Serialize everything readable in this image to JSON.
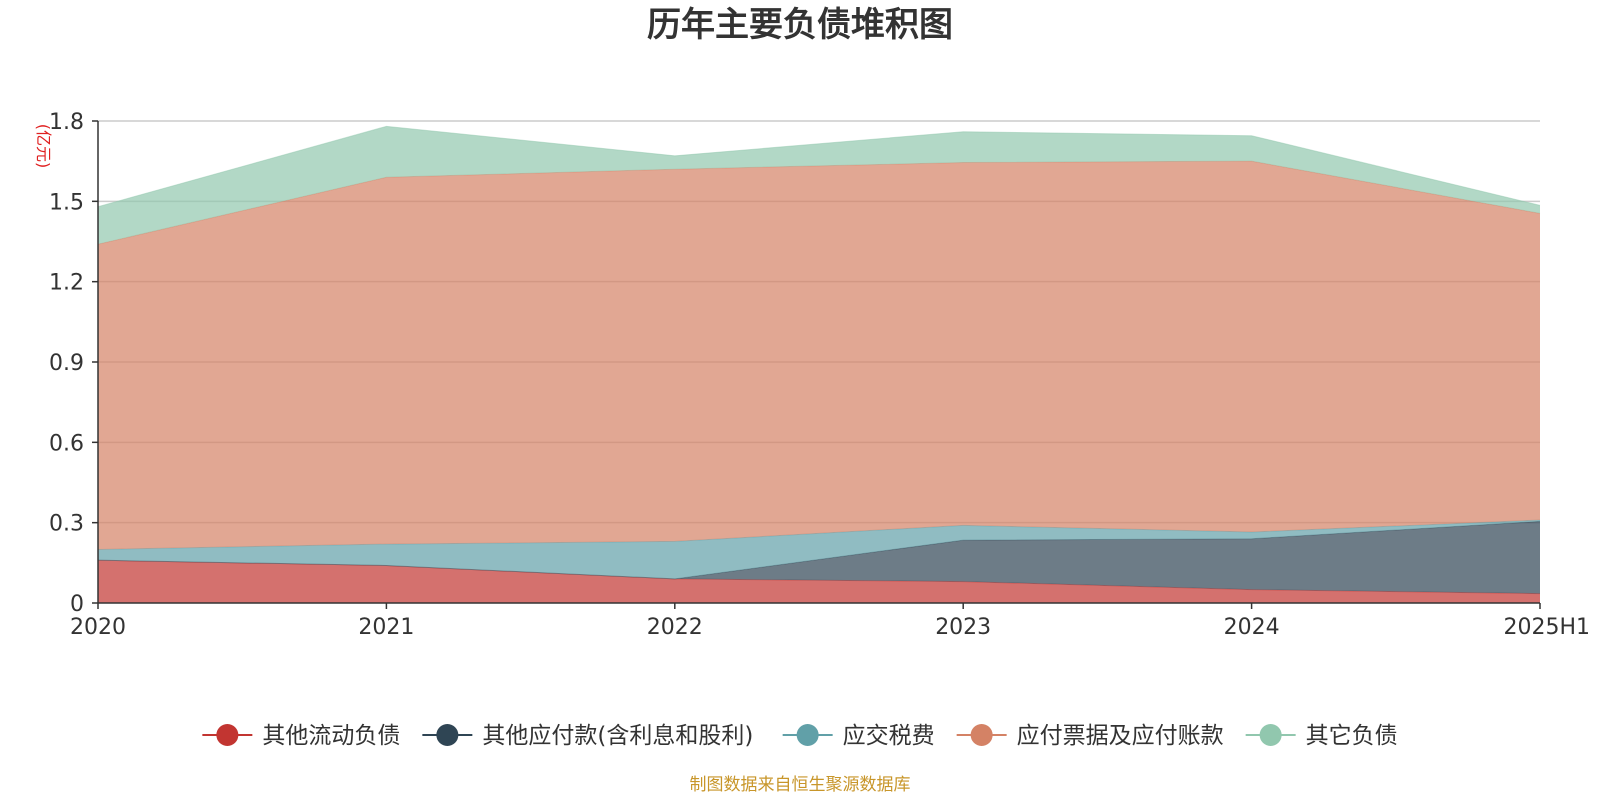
{
  "chart_data": {
    "type": "area",
    "stacked": true,
    "title": "历年主要负债堆积图",
    "unit_label": "(亿元)",
    "ylim": [
      0,
      1.8
    ],
    "yticks": [
      "0",
      "0.3",
      "0.6",
      "0.9",
      "1.2",
      "1.5",
      "1.8"
    ],
    "grid": true,
    "legend_position": "bottom",
    "categories": [
      "2020",
      "2021",
      "2022",
      "2023",
      "2024",
      "2025H1"
    ],
    "series": [
      {
        "name": "其他流动负债",
        "color": "#c23531",
        "values": [
          0.16,
          0.14,
          0.09,
          0.08,
          0.05,
          0.035
        ]
      },
      {
        "name": "其他应付款(含利息和股利)",
        "color": "#2f4554",
        "values": [
          0.0,
          0.0,
          0.0,
          0.155,
          0.19,
          0.27
        ]
      },
      {
        "name": "应交税费",
        "color": "#61a0a8",
        "values": [
          0.04,
          0.08,
          0.14,
          0.055,
          0.025,
          0.005
        ]
      },
      {
        "name": "应付票据及应付账款",
        "color": "#d48265",
        "values": [
          1.14,
          1.37,
          1.39,
          1.355,
          1.385,
          1.145
        ]
      },
      {
        "name": "其它负债",
        "color": "#91c7ae",
        "values": [
          0.14,
          0.19,
          0.05,
          0.115,
          0.095,
          0.03
        ]
      }
    ],
    "source": "制图数据来自恒生聚源数据库"
  }
}
